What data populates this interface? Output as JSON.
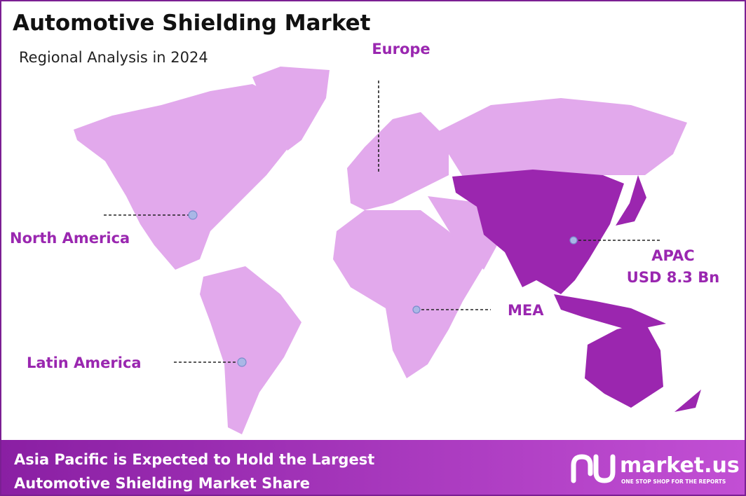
{
  "header": {
    "title": "Automotive Shielding Market",
    "subtitle": "Regional Analysis in 2024"
  },
  "regions": [
    {
      "label": "Europe"
    },
    {
      "label": "North America"
    },
    {
      "label": "Latin America"
    },
    {
      "label": "MEA"
    },
    {
      "label": "APAC",
      "value": "USD 8.3 Bn"
    }
  ],
  "footer": {
    "lines": [
      "Asia Pacific is Expected to Hold the Largest",
      "Automotive Shielding Market Share"
    ]
  },
  "logo": {
    "name": "market.us",
    "tagline": "ONE STOP SHOP FOR THE REPORTS"
  }
}
